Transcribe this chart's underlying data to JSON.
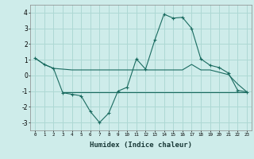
{
  "xlabel": "Humidex (Indice chaleur)",
  "background_color": "#ceecea",
  "grid_color": "#aed8d4",
  "line_color": "#1a6b60",
  "xlim": [
    -0.5,
    23.5
  ],
  "ylim": [
    -3.5,
    4.5
  ],
  "xtick_values": [
    0,
    1,
    2,
    3,
    4,
    5,
    6,
    7,
    8,
    9,
    10,
    11,
    12,
    13,
    14,
    15,
    16,
    17,
    18,
    19,
    20,
    21,
    22,
    23
  ],
  "xtick_labels": [
    "0",
    "1",
    "2",
    "3",
    "4",
    "5",
    "6",
    "7",
    "8",
    "9",
    "10",
    "11",
    "12",
    "13",
    "14",
    "15",
    "16",
    "17",
    "18",
    "19",
    "20",
    "21",
    "22",
    "23"
  ],
  "ytick_values": [
    -3,
    -2,
    -1,
    0,
    1,
    2,
    3,
    4
  ],
  "lines": [
    {
      "x": [
        0,
        1,
        2,
        3,
        4,
        5,
        6,
        7,
        8,
        9,
        10,
        11,
        12,
        13,
        14,
        15,
        16,
        17,
        18,
        19,
        20,
        21,
        22,
        23
      ],
      "y": [
        1.1,
        0.7,
        0.45,
        0.4,
        0.35,
        0.35,
        0.35,
        0.35,
        0.35,
        0.35,
        0.35,
        0.35,
        0.35,
        0.35,
        0.35,
        0.35,
        0.35,
        0.7,
        0.35,
        0.35,
        0.2,
        0.05,
        -0.55,
        -1.05
      ],
      "has_markers": false
    },
    {
      "x": [
        0,
        1,
        2,
        3,
        4,
        5,
        6,
        7,
        8,
        9,
        10,
        11,
        12,
        13,
        14,
        15,
        16,
        17,
        18,
        19,
        20,
        21,
        22,
        23
      ],
      "y": [
        1.1,
        0.7,
        0.45,
        -1.1,
        -1.2,
        -1.3,
        -2.3,
        -3.0,
        -2.4,
        -1.0,
        -0.75,
        1.05,
        0.4,
        2.25,
        3.9,
        3.65,
        3.7,
        3.0,
        1.05,
        0.65,
        0.5,
        0.15,
        -0.95,
        -1.05
      ],
      "has_markers": true
    },
    {
      "x": [
        3,
        23
      ],
      "y": [
        -1.05,
        -1.05
      ],
      "has_markers": false
    }
  ]
}
